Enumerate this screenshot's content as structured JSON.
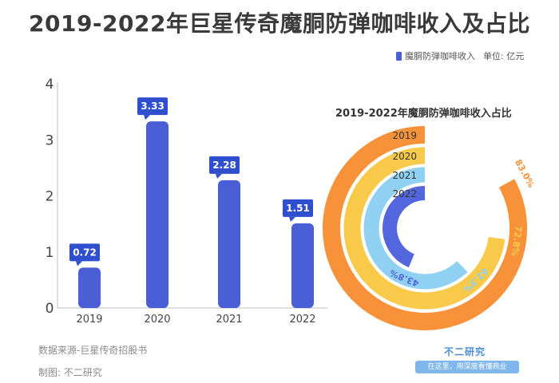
{
  "title": "2019-2022年巨星传奇魔胴防弹咖啡收入及占比",
  "legend": {
    "series_label": "魔胴防弹咖啡收入",
    "unit_label": "单位: 亿元",
    "color": "#4a5fd6"
  },
  "subtitle": "2019-2022年魔胴防弹咖啡收入占比",
  "source": "数据来源-巨星传奇招股书",
  "maker": "制图: 不二研究",
  "brand": {
    "name": "不二研究",
    "tagline": "在这里，用深度看懂商业"
  },
  "chart_data": [
    {
      "type": "bar",
      "categories": [
        "2019",
        "2020",
        "2021",
        "2022"
      ],
      "values": [
        0.72,
        3.33,
        2.28,
        1.51
      ],
      "value_labels": [
        "0.72",
        "3.33",
        "2.28",
        "1.51"
      ],
      "series_name": "魔胴防弹咖啡收入",
      "ylabel": "亿元",
      "ylim": [
        0,
        4
      ],
      "yticks": [
        "0",
        "1",
        "2",
        "3",
        "4"
      ],
      "bar_color": "#4a5fd6",
      "label_color": "#2f4fce"
    },
    {
      "type": "pie",
      "style": "radial-bar",
      "title": "2019-2022年魔胴防弹咖啡收入占比",
      "categories": [
        "2019",
        "2020",
        "2021",
        "2022"
      ],
      "values": [
        83.0,
        72.8,
        62.3,
        43.8
      ],
      "value_labels": [
        "83.0%",
        "72.8%",
        "62.3%",
        "43.8%"
      ],
      "colors": [
        "#f7923a",
        "#f9c94a",
        "#8fd0f3",
        "#5366de"
      ],
      "max": 100
    }
  ]
}
